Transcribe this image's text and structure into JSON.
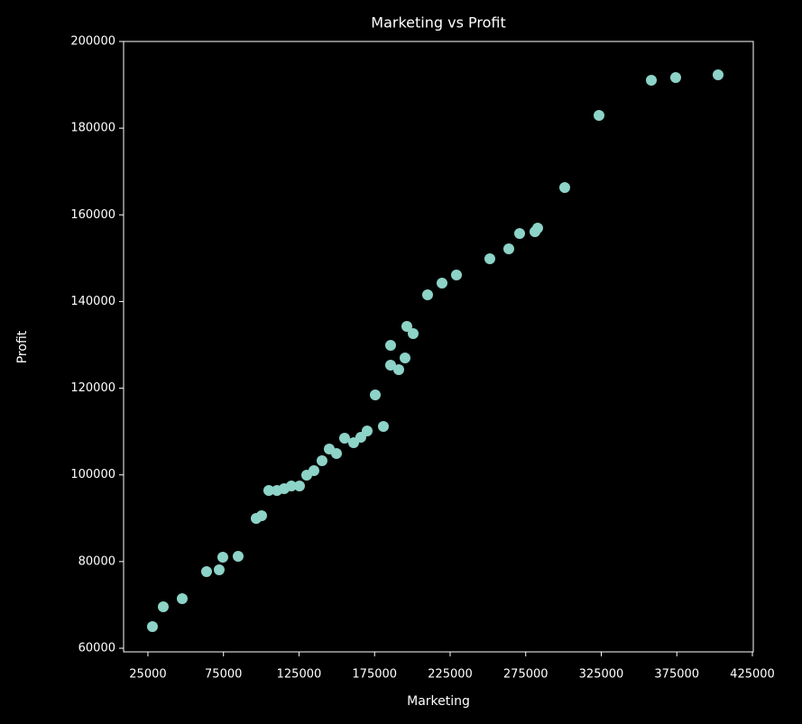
{
  "chart_data": {
    "type": "scatter",
    "title": "Marketing vs Profit",
    "xlabel": "Marketing",
    "ylabel": "Profit",
    "color": "#8dd3c7",
    "x": [
      27985,
      35150,
      47690,
      63800,
      72160,
      74550,
      84700,
      96640,
      100220,
      105000,
      110370,
      115150,
      119920,
      125300,
      130070,
      134850,
      140220,
      145000,
      149780,
      155150,
      161120,
      165900,
      170070,
      180820,
      175450,
      185600,
      190970,
      195150,
      185600,
      196340,
      200520,
      210070,
      219630,
      229180,
      251270,
      263810,
      270970,
      281120,
      282910,
      300820,
      323510,
      358130,
      374250,
      402310
    ],
    "values": [
      64990,
      69570,
      71440,
      77680,
      78100,
      81010,
      81220,
      89960,
      90580,
      96400,
      96400,
      96820,
      97450,
      97450,
      99940,
      100980,
      103270,
      105970,
      104930,
      108470,
      107430,
      108680,
      110140,
      111180,
      118460,
      125320,
      124280,
      126990,
      129900,
      134270,
      132600,
      141550,
      144250,
      146130,
      149870,
      152160,
      155690,
      156110,
      156940,
      166300,
      182940,
      191060,
      191680,
      192310
    ],
    "xlim": [
      8900,
      425600
    ],
    "xticks": [
      25000,
      75000,
      125000,
      175000,
      225000,
      275000,
      325000,
      375000,
      425000
    ],
    "ylim": [
      59170,
      200000
    ],
    "yticks": [
      60000,
      80000,
      100000,
      120000,
      140000,
      160000,
      180000,
      200000
    ]
  }
}
